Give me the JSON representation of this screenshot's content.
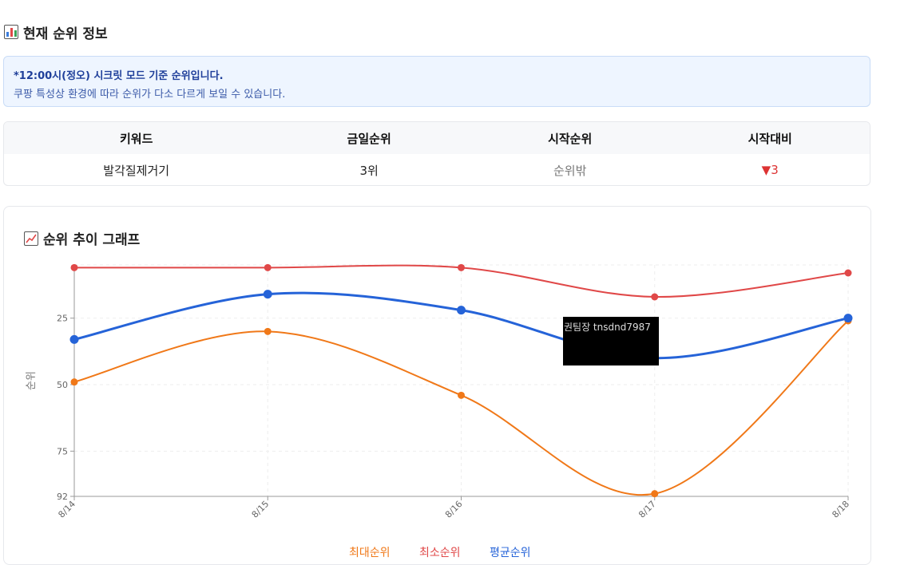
{
  "page": {
    "section_title": "현재 순위 정보",
    "notice_bold": "*12:00시(정오) 시크릿 모드 기준 순위입니다.",
    "notice_sub": "쿠팡 특성상 환경에 따라 순위가 다소 다르게 보일 수 있습니다."
  },
  "table": {
    "headers": [
      "키워드",
      "금일순위",
      "시작순위",
      "시작대비"
    ],
    "row": {
      "keyword": "발각질제거기",
      "today": "3위",
      "start": "순위밖",
      "change": "▼3"
    }
  },
  "chart_section": {
    "title": "순위 추이 그래프",
    "tooltip": "권팀장 tnsdnd7987"
  },
  "chart_data": {
    "type": "line",
    "categories": [
      "8/14",
      "8/15",
      "8/16",
      "8/17",
      "8/18"
    ],
    "ylabel": "순위",
    "y_ticks": [
      "25",
      "50",
      "75",
      "92"
    ],
    "y_reversed": true,
    "ylim": [
      5,
      92
    ],
    "series": [
      {
        "name": "최대순위",
        "color": "#f07818",
        "values": [
          49,
          30,
          54,
          91,
          26
        ]
      },
      {
        "name": "최소순위",
        "color": "#e04848",
        "values": [
          6,
          6,
          6,
          17,
          8
        ]
      },
      {
        "name": "평균순위",
        "color": "#2563d8",
        "values": [
          33,
          16,
          22,
          40,
          25
        ]
      }
    ],
    "legend_position": "bottom"
  }
}
